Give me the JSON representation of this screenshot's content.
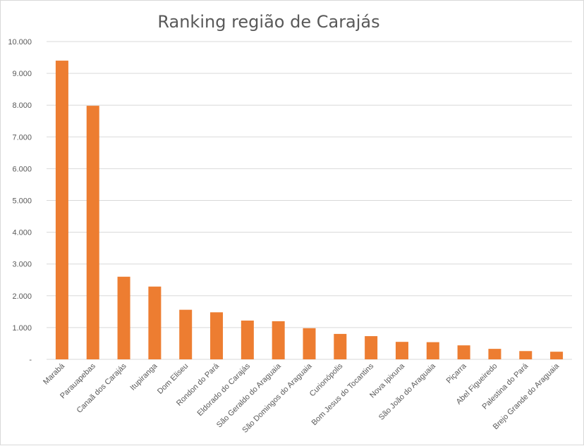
{
  "chart_data": {
    "type": "bar",
    "title": "Ranking região de Carajás",
    "xlabel": "",
    "ylabel": "",
    "ylim": [
      0,
      10000
    ],
    "yticks": [
      "-",
      "1.000",
      "2.000",
      "3.000",
      "4.000",
      "5.000",
      "6.000",
      "7.000",
      "8.000",
      "9.000",
      "10.000"
    ],
    "ytick_values": [
      0,
      1000,
      2000,
      3000,
      4000,
      5000,
      6000,
      7000,
      8000,
      9000,
      10000
    ],
    "grid": true,
    "legend": "none",
    "bar_color": "#ed7d31",
    "categories": [
      "Marabá",
      "Parauapebas",
      "Canaã dos Carajás",
      "Itupiranga",
      "Dom Eliseu",
      "Rondon do Pará",
      "Eldorado do Carajás",
      "São Geraldo do Araguaia",
      "São Domingos do Araguaia",
      "Curionópolis",
      "Bom Jesus do Tocantins",
      "Nova Ipixuna",
      "São João do Araguaia",
      "Piçarra",
      "Abel Figueiredo",
      "Palestina do Pará",
      "Brejo Grande do Araguaia"
    ],
    "values": [
      9400,
      7980,
      2600,
      2290,
      1560,
      1480,
      1220,
      1200,
      980,
      800,
      730,
      550,
      540,
      440,
      330,
      260,
      240
    ]
  }
}
